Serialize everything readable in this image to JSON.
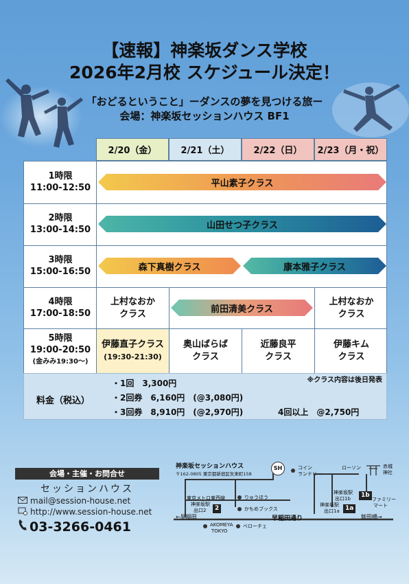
{
  "header": {
    "title_line1": "【速報】神楽坂ダンス学校",
    "title_line2": "2026年2月校 スケジュール決定！",
    "subtitle": "「おどるということ」ーダンスの夢を見つける旅ー",
    "venue": "会場：神楽坂セッションハウス BF1"
  },
  "days": [
    {
      "label": "2/20（金）",
      "color": "#e7efc7"
    },
    {
      "label": "2/21（土）",
      "color": "#d5e6f3"
    },
    {
      "label": "2/22（日）",
      "color": "#f1c4bf"
    },
    {
      "label": "2/23（月・祝）",
      "color": "#f1c4bf"
    }
  ],
  "periods": [
    {
      "name": "1時限",
      "time": "11:00-12:50",
      "note": ""
    },
    {
      "name": "2時限",
      "time": "13:00-14:50",
      "note": ""
    },
    {
      "name": "3時限",
      "time": "15:00-16:50",
      "note": ""
    },
    {
      "name": "4時限",
      "time": "17:00-18:50",
      "note": ""
    },
    {
      "name": "5時限",
      "time": "19:00-20:50",
      "note": "(金みみ19:30〜)"
    }
  ],
  "classes": {
    "p1_all": "平山素子クラス",
    "p2_all": "山田せつ子クラス",
    "p3_a": "森下真樹クラス",
    "p3_b": "康本雅子クラス",
    "p4_fri_line1": "上村なおか",
    "p4_fri_line2": "クラス",
    "p4_mid": "前田清美クラス",
    "p4_mon_line1": "上村なおか",
    "p4_mon_line2": "クラス",
    "p5_fri_line1": "伊藤直子クラス",
    "p5_fri_line2": "(19:30-21:30)",
    "p5_sat_line1": "奥山ばらば",
    "p5_sat_line2": "クラス",
    "p5_sun_line1": "近藤良平",
    "p5_sun_line2": "クラス",
    "p5_mon_line1": "伊藤キム",
    "p5_mon_line2": "クラス"
  },
  "fees": {
    "label": "料金（税込）",
    "note": "※クラス内容は後日発表",
    "items": [
      "・1回　3,300円",
      "・2回券　6,160円　(@3,080円)",
      "・3回券　8,910円　(@2,970円)"
    ],
    "extra": "4回以上　@2,750円"
  },
  "contact": {
    "heading": "会場・主催・お問合せ",
    "name": "セッションハウス",
    "mail": "mail@session-house.net",
    "url": "http://www.session-house.net",
    "phone": "03-3266-0461"
  },
  "map": {
    "title": "神楽坂セッションハウス",
    "address": "〒162-0805 東京都新宿区矢来町158",
    "labels": {
      "coin": "コイン",
      "laundry": "ランドリー",
      "lawson": "ローソン",
      "akagi_1": "赤城",
      "akagi_2": "神社",
      "tozai_1": "東京メトロ東西線",
      "tozai_2": "神楽坂駅",
      "tozai_3": "出口2",
      "ryuho": "りゅうほう",
      "kamome": "かもめブックス",
      "oedo_1b_1": "神楽坂駅",
      "oedo_1b_2": "出口1b",
      "oedo_1a_1": "神楽坂駅",
      "oedo_1a_2": "出口1a",
      "family_1": "ファミリー",
      "family_2": "マート",
      "waseda": "←早稲田",
      "waseda_dori": "早稲田通り",
      "iidabashi": "飯田橋→",
      "akomeya_1": "AKOMEYA",
      "akomeya_2": "TOKYO",
      "bellochet": "ベローチェ",
      "exit2": "2",
      "exit1b": "1b",
      "exit1a": "1a",
      "logo": "SH"
    }
  },
  "colors": {
    "bar_yellow": "#f2c14a",
    "bar_teal": "#2a9d9a",
    "bar_orange": "#ef8a4f",
    "bar_pink": "#e9857a"
  }
}
